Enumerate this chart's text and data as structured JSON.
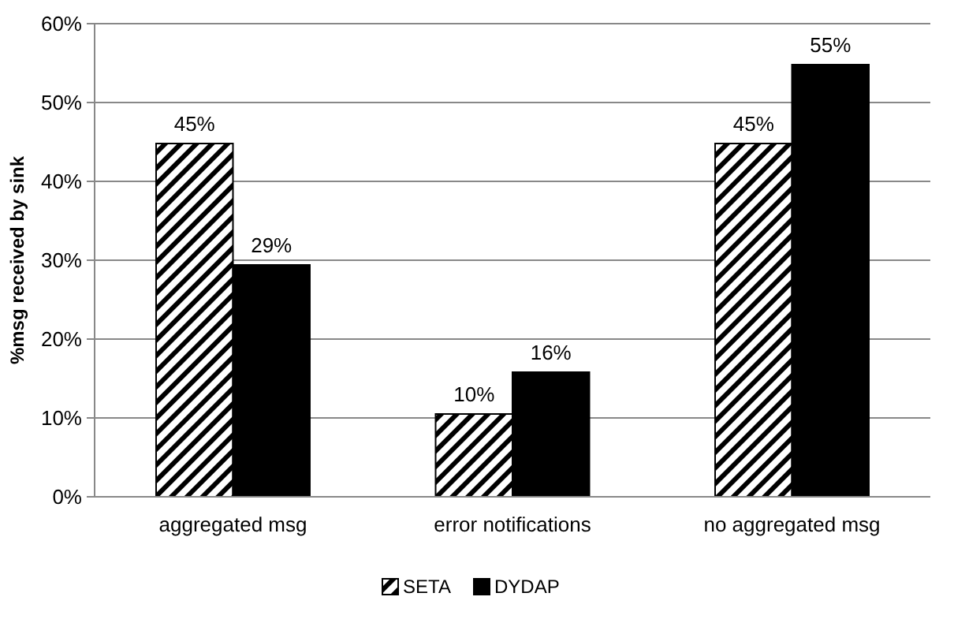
{
  "chart_data": {
    "type": "bar",
    "ylabel": "%msg received by sink",
    "categories": [
      "aggregated msg",
      "error notifications",
      "no aggregated msg"
    ],
    "series": [
      {
        "name": "SETA",
        "color": "#000000",
        "values": [
          44.8,
          10.5,
          44.8
        ],
        "value_labels": [
          "45%",
          "10%",
          "45%"
        ]
      },
      {
        "name": "DYDAP",
        "color": "#000000",
        "values": [
          29.4,
          15.8,
          54.8
        ],
        "value_labels": [
          "29%",
          "16%",
          "55%"
        ]
      }
    ],
    "ylim": [
      0,
      60
    ],
    "yticks": [
      {
        "value": 0,
        "label": "0%"
      },
      {
        "value": 10,
        "label": "10%"
      },
      {
        "value": 20,
        "label": "20%"
      },
      {
        "value": 30,
        "label": "30%"
      },
      {
        "value": 40,
        "label": "40%"
      },
      {
        "value": 50,
        "label": "50%"
      },
      {
        "value": 60,
        "label": "60%"
      }
    ],
    "grid": "y",
    "legend": "bottom"
  }
}
